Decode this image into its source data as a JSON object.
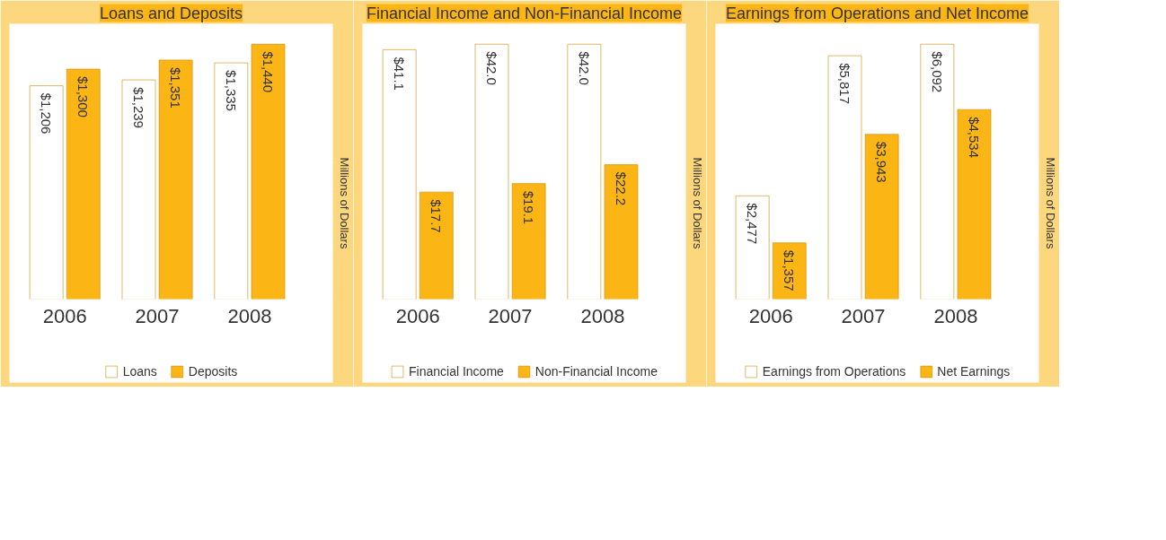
{
  "chart_data": [
    {
      "type": "bar",
      "title": "Loans and Deposits",
      "ylabel": "Millions of Dollars",
      "categories": [
        "2006",
        "2007",
        "2008"
      ],
      "legend": "bottom",
      "grid": false,
      "series": [
        {
          "name": "Loans",
          "color": "#ffffff",
          "values": [
            1206,
            1239,
            1335
          ],
          "value_labels": [
            "$1,206",
            "$1,239",
            "$1,335"
          ]
        },
        {
          "name": "Deposits",
          "color": "#fbb515",
          "values": [
            1300,
            1351,
            1440
          ],
          "value_labels": [
            "$1,300",
            "$1,351",
            "$1,440"
          ]
        }
      ]
    },
    {
      "type": "bar",
      "title": "Financial Income and Non-Financial Income",
      "ylabel": "Millions of Dollars",
      "categories": [
        "2006",
        "2007",
        "2008"
      ],
      "legend": "bottom",
      "grid": false,
      "series": [
        {
          "name": "Financial Income",
          "color": "#ffffff",
          "values": [
            41.1,
            42.0,
            42.0
          ],
          "value_labels": [
            "$41.1",
            "$42.0",
            "$42.0"
          ]
        },
        {
          "name": "Non-Financial Income",
          "color": "#fbb515",
          "values": [
            17.7,
            19.1,
            22.2
          ],
          "value_labels": [
            "$17.7",
            "$19.1",
            "$22.2"
          ]
        }
      ]
    },
    {
      "type": "bar",
      "title": "Earnings from Operations and Net Income",
      "ylabel": "Millions of Dollars",
      "categories": [
        "2006",
        "2007",
        "2008"
      ],
      "legend": "bottom",
      "grid": false,
      "series": [
        {
          "name": "Earnings from Operations",
          "color": "#ffffff",
          "values": [
            2477,
            5817,
            6092
          ],
          "value_labels": [
            "$2,477",
            "$5,817",
            "$6,092"
          ]
        },
        {
          "name": "Net Earnings",
          "color": "#fbb515",
          "values": [
            1357,
            3943,
            4534
          ],
          "value_labels": [
            "$1,357",
            "$3,943",
            "$4,534"
          ]
        }
      ]
    }
  ]
}
